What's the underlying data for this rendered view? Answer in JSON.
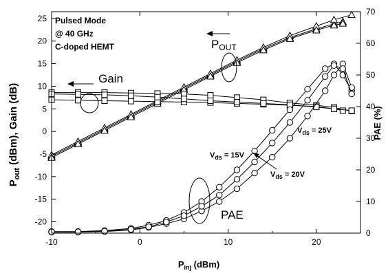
{
  "chart_data": {
    "type": "line",
    "x_axis": {
      "label_main": "P",
      "label_sub": "inj",
      "label_rest": " (dBm)",
      "lim": [
        -10,
        25
      ],
      "ticks": [
        -10,
        0,
        10,
        20
      ]
    },
    "y_left": {
      "label_main": "P",
      "label_sub": "out",
      "label_rest": " (dBm), Gain (dB)",
      "lim": [
        -22.5,
        26.5
      ],
      "ticks": [
        -20,
        -15,
        -10,
        -5,
        0,
        5,
        10,
        15,
        20,
        25
      ]
    },
    "y_right": {
      "label": "PAE (%)",
      "lim": [
        0,
        70
      ],
      "ticks": [
        0,
        10,
        20,
        30,
        40,
        50,
        60,
        70
      ]
    },
    "info_box": [
      "Pulsed Mode",
      "@ 40 GHz",
      "C-doped HEMT"
    ],
    "annotations": {
      "pout_main": "P",
      "pout_sub": "OUT",
      "gain": "Gain",
      "pae": "PAE",
      "vds_prefix": "V",
      "vds_sub": "ds",
      "vds_15": " = 15V",
      "vds_20": " = 20V",
      "vds_25": " = 25V"
    },
    "series": [
      {
        "group": "Pout",
        "marker": "triangle",
        "axis": "left",
        "x": [
          -10,
          -7,
          -4,
          -1,
          2,
          5,
          8,
          11,
          14,
          17,
          20,
          22,
          23
        ],
        "y": [
          -5.5,
          -2.5,
          0.5,
          3.5,
          6.5,
          9.5,
          12.5,
          15.5,
          18.3,
          20.8,
          22.7,
          23.8,
          24.3
        ]
      },
      {
        "group": "Pout",
        "marker": "triangle",
        "axis": "left",
        "x": [
          -10,
          -7,
          -4,
          -1,
          2,
          5,
          8,
          11,
          14,
          17,
          20,
          22,
          24
        ],
        "y": [
          -5.2,
          -2.2,
          0.8,
          3.8,
          6.8,
          9.8,
          12.8,
          15.8,
          18.6,
          21.2,
          23.3,
          24.7,
          25.8
        ]
      },
      {
        "group": "Pout",
        "marker": "triangle",
        "axis": "left",
        "x": [
          -10,
          -7,
          -4,
          -1,
          2,
          5,
          8,
          11,
          14,
          17,
          20,
          22,
          23
        ],
        "y": [
          -5.8,
          -2.8,
          0.2,
          3.2,
          6.2,
          9.2,
          12.2,
          15.2,
          18.0,
          20.5,
          22.4,
          23.5,
          23.9
        ]
      },
      {
        "group": "Gain",
        "marker": "square",
        "axis": "left",
        "x": [
          -10,
          -7,
          -4,
          -1,
          2,
          5,
          8,
          11,
          14,
          17,
          20,
          22,
          24
        ],
        "y": [
          8.6,
          8.6,
          8.6,
          8.5,
          8.4,
          8.3,
          8.0,
          7.5,
          7.0,
          6.3,
          5.8,
          5.3,
          4.5
        ]
      },
      {
        "group": "Gain",
        "marker": "square",
        "axis": "left",
        "x": [
          -10,
          -7,
          -4,
          -1,
          2,
          5,
          8,
          11,
          14,
          17,
          20,
          22,
          23
        ],
        "y": [
          7.0,
          6.9,
          6.8,
          6.7,
          6.6,
          6.5,
          6.4,
          6.2,
          6.0,
          5.8,
          5.5,
          5.0,
          4.6
        ]
      },
      {
        "group": "Gain",
        "marker": "square",
        "axis": "left",
        "x": [
          -10,
          -7,
          -4,
          -1,
          2,
          5,
          8,
          11,
          14,
          17,
          20,
          22,
          24
        ],
        "y": [
          8.3,
          8.2,
          8.1,
          7.9,
          7.6,
          7.2,
          6.8,
          6.5,
          6.2,
          5.9,
          5.4,
          5.0,
          4.6
        ]
      },
      {
        "group": "PAE",
        "marker": "circle",
        "axis": "right",
        "label": "Vds = 15V",
        "x": [
          -10,
          -7,
          -4,
          -1,
          1,
          3,
          5,
          7,
          9,
          11,
          13,
          15,
          17,
          19,
          21,
          22,
          23,
          24
        ],
        "y": [
          0.5,
          0.5,
          0.8,
          1.5,
          2.5,
          4.0,
          6.5,
          10.0,
          14.5,
          20.0,
          26.0,
          32.5,
          39.0,
          45.5,
          52.0,
          53.5,
          50.0,
          45.0
        ]
      },
      {
        "group": "PAE",
        "marker": "circle",
        "axis": "right",
        "label": "Vds = 25V",
        "x": [
          -10,
          -7,
          -4,
          -1,
          1,
          3,
          5,
          7,
          9,
          11,
          13,
          15,
          17,
          19,
          21,
          22,
          23,
          24
        ],
        "y": [
          0.3,
          0.3,
          0.5,
          1.0,
          1.8,
          3.0,
          4.5,
          7.0,
          10.0,
          14.0,
          19.0,
          24.0,
          30.0,
          37.0,
          45.0,
          50.0,
          53.5,
          46.0
        ]
      },
      {
        "group": "PAE",
        "marker": "circle",
        "axis": "right",
        "label": "Vds = 20V",
        "x": [
          -10,
          -7,
          -4,
          -1,
          1,
          3,
          5,
          7,
          9,
          11,
          13,
          15,
          17,
          19,
          21,
          22,
          23,
          24
        ],
        "y": [
          0.4,
          0.4,
          0.6,
          1.2,
          2.0,
          3.5,
          5.5,
          8.5,
          12.0,
          17.0,
          22.5,
          28.5,
          35.0,
          42.0,
          49.5,
          53.0,
          52.0,
          44.0
        ]
      }
    ]
  }
}
